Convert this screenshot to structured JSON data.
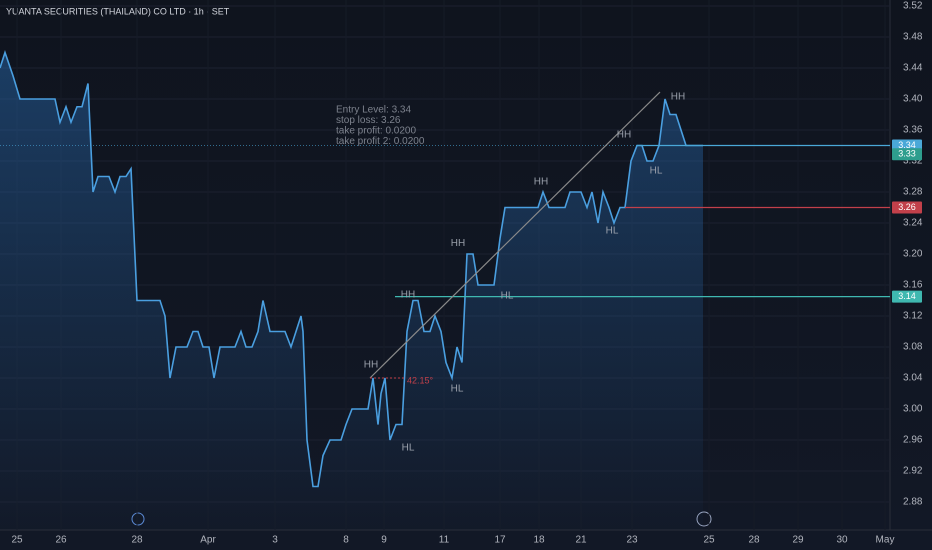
{
  "chart_data": {
    "type": "line",
    "title": "YUANTA SECURITIES (THAILAND) CO LTD · 1h · SET",
    "color": "#4a9fe0",
    "x": [
      0,
      5,
      13,
      20,
      55,
      60,
      66,
      71,
      77,
      82,
      88,
      93,
      98,
      109,
      115,
      120,
      126,
      131,
      137,
      160,
      165,
      170,
      176,
      187,
      193,
      198,
      203,
      209,
      214,
      220,
      235,
      241,
      246,
      252,
      258,
      263,
      270,
      285,
      291,
      296,
      301,
      303,
      307,
      313,
      318,
      323,
      330,
      341,
      346,
      352,
      368,
      373,
      378,
      381,
      385,
      390,
      396,
      402,
      407,
      413,
      418,
      424,
      430,
      435,
      441,
      446,
      452,
      457,
      462,
      467,
      473,
      478,
      494,
      500,
      505,
      538,
      543,
      549,
      565,
      570,
      581,
      587,
      592,
      598,
      603,
      609,
      614,
      620,
      625,
      631,
      637,
      642,
      647,
      653,
      659,
      665,
      670,
      676,
      681,
      686,
      703
    ],
    "values": [
      3.44,
      3.46,
      3.43,
      3.4,
      3.4,
      3.37,
      3.39,
      3.37,
      3.39,
      3.39,
      3.42,
      3.28,
      3.3,
      3.3,
      3.28,
      3.3,
      3.3,
      3.31,
      3.14,
      3.14,
      3.12,
      3.04,
      3.08,
      3.08,
      3.1,
      3.1,
      3.08,
      3.08,
      3.04,
      3.08,
      3.08,
      3.1,
      3.08,
      3.08,
      3.1,
      3.14,
      3.1,
      3.1,
      3.08,
      3.1,
      3.12,
      3.1,
      2.96,
      2.9,
      2.9,
      2.94,
      2.96,
      2.96,
      2.98,
      3.0,
      3.0,
      3.04,
      2.98,
      3.02,
      3.04,
      2.96,
      2.98,
      2.98,
      3.1,
      3.14,
      3.14,
      3.1,
      3.1,
      3.12,
      3.1,
      3.06,
      3.04,
      3.08,
      3.06,
      3.2,
      3.2,
      3.16,
      3.16,
      3.22,
      3.26,
      3.26,
      3.28,
      3.26,
      3.26,
      3.28,
      3.28,
      3.26,
      3.28,
      3.24,
      3.28,
      3.26,
      3.24,
      3.26,
      3.26,
      3.32,
      3.34,
      3.34,
      3.32,
      3.32,
      3.34,
      3.4,
      3.38,
      3.38,
      3.36,
      3.34,
      3.34
    ],
    "xlim": [
      0,
      890
    ],
    "ylim": [
      2.88,
      3.52
    ],
    "yticks": [
      {
        "value": 2.88,
        "label": "2.88"
      },
      2.92,
      2.96,
      {
        "value": 3.0,
        "label": "3.00"
      },
      3.04,
      3.08,
      3.12,
      3.16,
      {
        "value": 3.2,
        "label": "3.20"
      },
      3.24,
      3.28,
      3.32,
      3.36,
      {
        "value": 3.4,
        "label": "3.40"
      },
      3.44,
      3.48,
      3.52
    ],
    "xticks": [
      {
        "value": 17,
        "label": "25"
      },
      {
        "value": 61,
        "label": "26"
      },
      {
        "value": 137,
        "label": "28"
      },
      {
        "value": 208,
        "label": "Apr"
      },
      {
        "value": 275,
        "label": "3"
      },
      {
        "value": 346,
        "label": "8"
      },
      {
        "value": 384,
        "label": "9"
      },
      {
        "value": 444,
        "label": "11"
      },
      {
        "value": 500,
        "label": "17"
      },
      {
        "value": 539,
        "label": "18"
      },
      {
        "value": 581,
        "label": "21"
      },
      {
        "value": 632,
        "label": "23"
      },
      {
        "value": 709,
        "label": "25"
      },
      {
        "value": 754,
        "label": "28"
      },
      {
        "value": 798,
        "label": "29"
      },
      {
        "value": 842,
        "label": "30"
      },
      {
        "value": 885,
        "label": "May"
      }
    ],
    "price_lines": [
      {
        "value": 3.34,
        "color": "#4aa8d8",
        "start": 637
      },
      {
        "value": 3.26,
        "color": "#c2404a",
        "start": 625
      },
      {
        "value": 3.145,
        "label": "3.14",
        "color": "#3fb8b0",
        "start": 395
      }
    ],
    "extra_price_label": {
      "value": 3.33,
      "color": "#2e9e8e"
    },
    "trend_line": {
      "x": [
        370,
        660
      ],
      "y": [
        3.04,
        3.409
      ]
    },
    "angle_line": {
      "x": [
        370,
        405
      ],
      "y": [
        3.04,
        3.04
      ]
    },
    "annotations": [
      {
        "text": "HH",
        "x": 678,
        "y": 3.403
      },
      {
        "text": "HH",
        "x": 624,
        "y": 3.354
      },
      {
        "text": "HL",
        "x": 656,
        "y": 3.307
      },
      {
        "text": "HH",
        "x": 541,
        "y": 3.293
      },
      {
        "text": "HL",
        "x": 612,
        "y": 3.23
      },
      {
        "text": "HH",
        "x": 458,
        "y": 3.214
      },
      {
        "text": "HH",
        "x": 408,
        "y": 3.147
      },
      {
        "text": "HL",
        "x": 507,
        "y": 3.146
      },
      {
        "text": "HL",
        "x": 457,
        "y": 3.026
      },
      {
        "text": "HH",
        "x": 371,
        "y": 3.057
      },
      {
        "text": "HL",
        "x": 408,
        "y": 2.95
      },
      {
        "text": "42.15°",
        "x": 420,
        "y": 3.036
      }
    ],
    "note": {
      "x": 336,
      "y": 3.386,
      "lines": [
        "Entry Level: 3.34",
        "stop loss: 3.26",
        "take profit: 0.0200",
        "take profit 2: 0.0200"
      ]
    }
  }
}
